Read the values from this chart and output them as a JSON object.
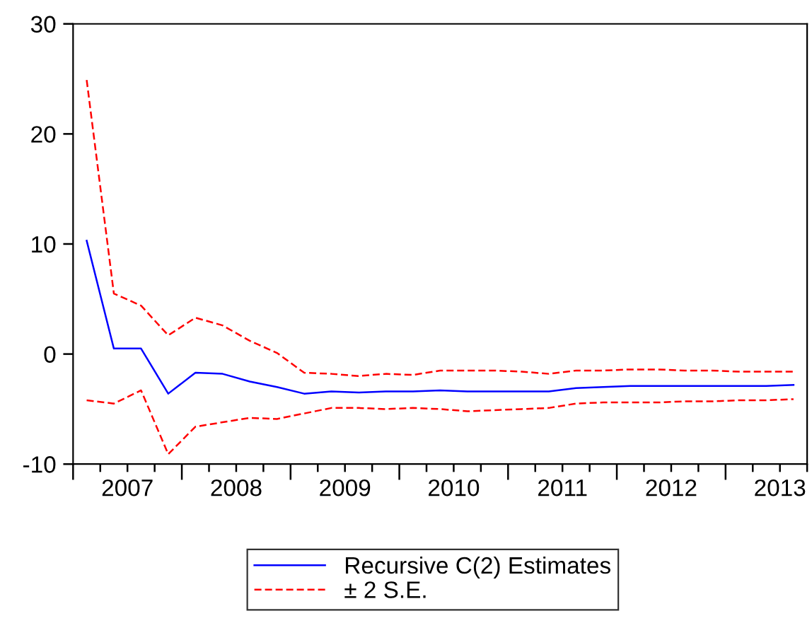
{
  "chart_data": {
    "type": "line",
    "x": [
      2007.125,
      2007.375,
      2007.625,
      2007.875,
      2008.125,
      2008.375,
      2008.625,
      2008.875,
      2009.125,
      2009.375,
      2009.625,
      2009.875,
      2010.125,
      2010.375,
      2010.625,
      2010.875,
      2011.125,
      2011.375,
      2011.625,
      2011.875,
      2012.125,
      2012.375,
      2012.625,
      2012.875,
      2013.125,
      2013.375,
      2013.625
    ],
    "series": [
      {
        "name": "Recursive C(2) Estimates",
        "color": "#0000ff",
        "line_style": "solid",
        "values": [
          10.3,
          0.5,
          0.5,
          -3.6,
          -1.7,
          -1.8,
          -2.5,
          -3.0,
          -3.6,
          -3.4,
          -3.5,
          -3.4,
          -3.4,
          -3.3,
          -3.4,
          -3.4,
          -3.4,
          -3.4,
          -3.1,
          -3.0,
          -2.9,
          -2.9,
          -2.9,
          -2.9,
          -2.9,
          -2.9,
          -2.8
        ]
      },
      {
        "name": "± 2 S.E.",
        "color": "#ff0000",
        "line_style": "dashed",
        "values": [
          24.9,
          5.5,
          4.4,
          1.7,
          3.3,
          2.6,
          1.2,
          0.1,
          -1.7,
          -1.8,
          -2.0,
          -1.8,
          -1.9,
          -1.5,
          -1.5,
          -1.5,
          -1.6,
          -1.8,
          -1.5,
          -1.5,
          -1.4,
          -1.4,
          -1.5,
          -1.5,
          -1.6,
          -1.6,
          -1.6
        ]
      },
      {
        "color": "#ff0000",
        "line_style": "dashed",
        "values": [
          -4.2,
          -4.5,
          -3.3,
          -9.1,
          -6.6,
          -6.2,
          -5.8,
          -5.9,
          -5.4,
          -4.9,
          -4.9,
          -5.0,
          -4.9,
          -5.0,
          -5.2,
          -5.1,
          -5.0,
          -4.9,
          -4.5,
          -4.4,
          -4.4,
          -4.4,
          -4.3,
          -4.3,
          -4.2,
          -4.2,
          -4.1
        ]
      }
    ],
    "xlim": [
      2007,
      2013.75
    ],
    "xticks": [
      {
        "value": 2007,
        "label": null
      },
      {
        "value": 2007.25,
        "label": null
      },
      {
        "value": 2007.5,
        "label": "2007"
      },
      {
        "value": 2007.75,
        "label": null
      },
      {
        "value": 2008,
        "label": null
      },
      {
        "value": 2008.25,
        "label": null
      },
      {
        "value": 2008.5,
        "label": "2008"
      },
      {
        "value": 2008.75,
        "label": null
      },
      {
        "value": 2009,
        "label": null
      },
      {
        "value": 2009.25,
        "label": null
      },
      {
        "value": 2009.5,
        "label": "2009"
      },
      {
        "value": 2009.75,
        "label": null
      },
      {
        "value": 2010,
        "label": null
      },
      {
        "value": 2010.25,
        "label": null
      },
      {
        "value": 2010.5,
        "label": "2010"
      },
      {
        "value": 2010.75,
        "label": null
      },
      {
        "value": 2011,
        "label": null
      },
      {
        "value": 2011.25,
        "label": null
      },
      {
        "value": 2011.5,
        "label": "2011"
      },
      {
        "value": 2011.75,
        "label": null
      },
      {
        "value": 2012,
        "label": null
      },
      {
        "value": 2012.25,
        "label": null
      },
      {
        "value": 2012.5,
        "label": "2012"
      },
      {
        "value": 2012.75,
        "label": null
      },
      {
        "value": 2013,
        "label": null
      },
      {
        "value": 2013.25,
        "label": null
      },
      {
        "value": 2013.5,
        "label": "2013"
      },
      {
        "value": 2013.75,
        "label": null
      }
    ],
    "ylim": [
      -10,
      30
    ],
    "yticks": [
      -10,
      0,
      10,
      20,
      30
    ],
    "grid": false,
    "legend": "bottom"
  }
}
